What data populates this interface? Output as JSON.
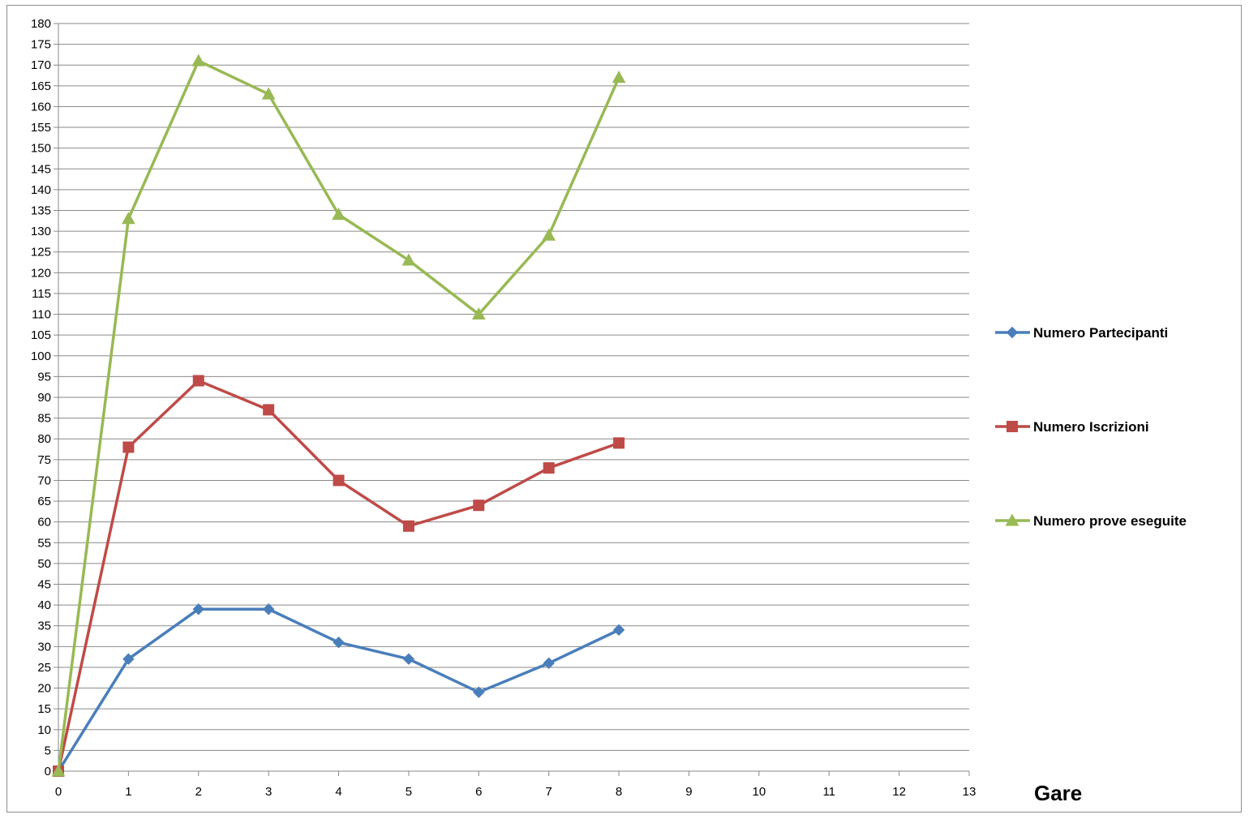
{
  "chart_data": {
    "type": "line",
    "title": "",
    "xlabel": "Gare",
    "ylabel": "",
    "xlim": [
      0,
      13
    ],
    "ylim": [
      0,
      180
    ],
    "x_ticks": [
      0,
      1,
      2,
      3,
      4,
      5,
      6,
      7,
      8,
      9,
      10,
      11,
      12,
      13
    ],
    "y_ticks": [
      0,
      5,
      10,
      15,
      20,
      25,
      30,
      35,
      40,
      45,
      50,
      55,
      60,
      65,
      70,
      75,
      80,
      85,
      90,
      95,
      100,
      105,
      110,
      115,
      120,
      125,
      130,
      135,
      140,
      145,
      150,
      155,
      160,
      165,
      170,
      175,
      180
    ],
    "grid": "horizontal",
    "legend_position": "right",
    "series": [
      {
        "name": "Numero Partecipanti",
        "color": "#4a7ebb",
        "marker": "diamond",
        "x": [
          0,
          1,
          2,
          3,
          4,
          5,
          6,
          7,
          8
        ],
        "values": [
          0,
          27,
          39,
          39,
          31,
          27,
          19,
          26,
          34
        ]
      },
      {
        "name": "Numero Iscrizioni",
        "color": "#be4b48",
        "marker": "square",
        "x": [
          0,
          1,
          2,
          3,
          4,
          5,
          6,
          7,
          8
        ],
        "values": [
          0,
          78,
          94,
          87,
          70,
          59,
          64,
          73,
          79
        ]
      },
      {
        "name": "Numero prove eseguite",
        "color": "#98b954",
        "marker": "triangle",
        "x": [
          0,
          1,
          2,
          3,
          4,
          5,
          6,
          7,
          8
        ],
        "values": [
          0,
          133,
          171,
          163,
          134,
          123,
          110,
          129,
          167
        ]
      }
    ]
  }
}
